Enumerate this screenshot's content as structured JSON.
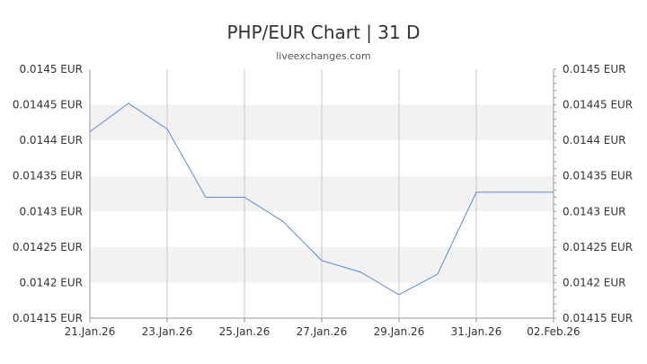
{
  "chart_data": {
    "type": "line",
    "title": "PHP/EUR Chart | 31 D",
    "subtitle": "liveexchanges.com",
    "xlabel": "",
    "ylabel": "",
    "x_tick_labels": [
      "21.Jan.26",
      "23.Jan.26",
      "25.Jan.26",
      "27.Jan.26",
      "29.Jan.26",
      "31.Jan.26",
      "02.Feb.26"
    ],
    "y_tick_labels": [
      "0.0145 EUR",
      "0.01445 EUR",
      "0.0144 EUR",
      "0.01435 EUR",
      "0.0143 EUR",
      "0.01425 EUR",
      "0.0142 EUR",
      "0.01415 EUR"
    ],
    "y_ticks": [
      0.0145,
      0.01445,
      0.0144,
      0.01435,
      0.0143,
      0.01425,
      0.0142,
      0.01415
    ],
    "ylim": [
      0.01415,
      0.0145
    ],
    "x": [
      "21.Jan.26",
      "22.Jan.26",
      "23.Jan.26",
      "24.Jan.26",
      "25.Jan.26",
      "26.Jan.26",
      "27.Jan.26",
      "28.Jan.26",
      "29.Jan.26",
      "30.Jan.26",
      "31.Jan.26",
      "01.Feb.26",
      "02.Feb.26"
    ],
    "values": [
      0.014412,
      0.014452,
      0.014416,
      0.01432,
      0.01432,
      0.014286,
      0.014231,
      0.014215,
      0.014183,
      0.014212,
      0.014327,
      0.014327,
      0.014327
    ],
    "grid": true,
    "line_color": "#5b8bd9",
    "band_color": "#f2f2f2",
    "grid_color": "#c8c8c8"
  }
}
